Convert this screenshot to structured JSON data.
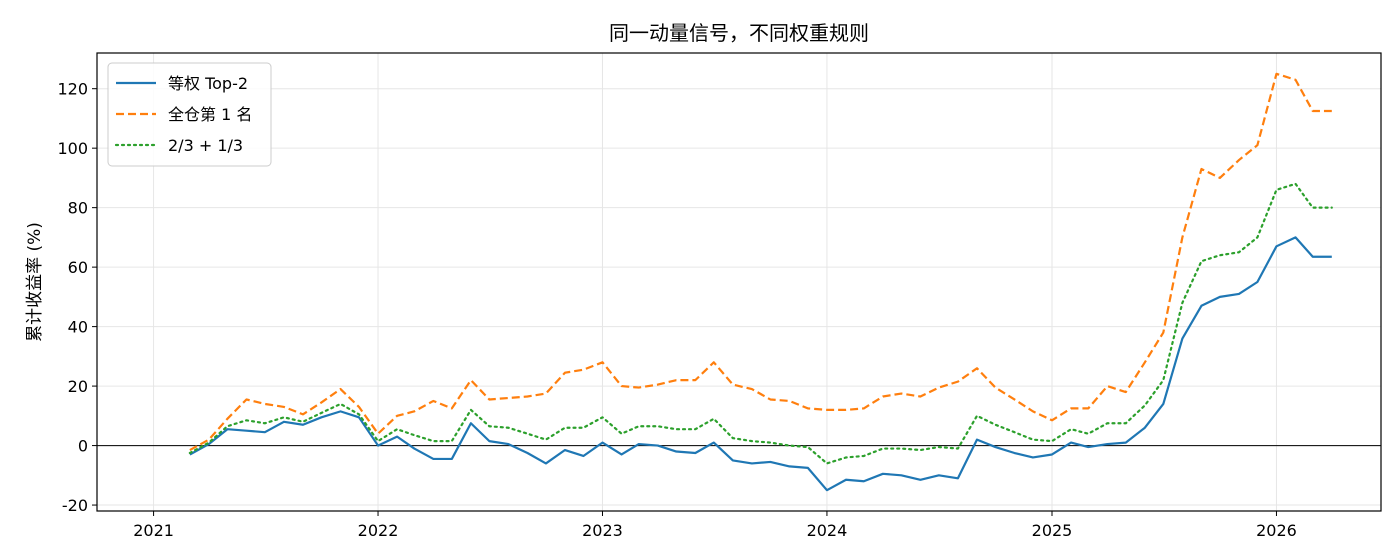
{
  "chart_data": {
    "type": "line",
    "title": "同一动量信号，不同权重规则",
    "xlabel": "",
    "ylabel": "累计收益率 (%)",
    "xlim": [
      "2020-10-01",
      "2026-06-20"
    ],
    "ylim": [
      -22,
      132
    ],
    "x_ticks": [
      "2021-01-01",
      "2022-01-01",
      "2023-01-01",
      "2024-01-01",
      "2025-01-01",
      "2026-01-01"
    ],
    "x_tick_labels": [
      "2021",
      "2022",
      "2023",
      "2024",
      "2025",
      "2026"
    ],
    "y_ticks": [
      -20,
      0,
      20,
      40,
      60,
      80,
      100,
      120
    ],
    "y_tick_labels": [
      "-20",
      "0",
      "20",
      "40",
      "60",
      "80",
      "100",
      "120"
    ],
    "grid": true,
    "zero_line": true,
    "legend_position": "top-left",
    "x": [
      "2021-03-01",
      "2021-04-01",
      "2021-05-01",
      "2021-06-01",
      "2021-07-01",
      "2021-08-01",
      "2021-09-01",
      "2021-10-01",
      "2021-11-01",
      "2021-12-01",
      "2022-01-01",
      "2022-02-01",
      "2022-03-01",
      "2022-04-01",
      "2022-05-01",
      "2022-06-01",
      "2022-07-01",
      "2022-08-01",
      "2022-09-01",
      "2022-10-01",
      "2022-11-01",
      "2022-12-01",
      "2023-01-01",
      "2023-02-01",
      "2023-03-01",
      "2023-04-01",
      "2023-05-01",
      "2023-06-01",
      "2023-07-01",
      "2023-08-01",
      "2023-09-01",
      "2023-10-01",
      "2023-11-01",
      "2023-12-01",
      "2024-01-01",
      "2024-02-01",
      "2024-03-01",
      "2024-04-01",
      "2024-05-01",
      "2024-06-01",
      "2024-07-01",
      "2024-08-01",
      "2024-09-01",
      "2024-10-01",
      "2024-11-01",
      "2024-12-01",
      "2025-01-01",
      "2025-02-01",
      "2025-03-01",
      "2025-04-01",
      "2025-05-01",
      "2025-06-01",
      "2025-07-01",
      "2025-08-01",
      "2025-09-01",
      "2025-10-01",
      "2025-11-01",
      "2025-12-01",
      "2026-01-01",
      "2026-02-01",
      "2026-03-01",
      "2026-04-01"
    ],
    "series": [
      {
        "name": "等权 Top-2",
        "color": "#1f77b4",
        "style": "solid",
        "values": [
          -3,
          0.5,
          5.5,
          5,
          4.5,
          8,
          7,
          9.5,
          11.5,
          9.5,
          0,
          3,
          -1,
          -4.5,
          -4.5,
          7.5,
          1.5,
          0.5,
          -2.5,
          -6,
          -1.5,
          -3.5,
          1,
          -3,
          0.5,
          0,
          -2,
          -2.5,
          1,
          -5,
          -6,
          -5.5,
          -7,
          -7.5,
          -15,
          -11.5,
          -12,
          -9.5,
          -10,
          -11.5,
          -10,
          -11,
          2,
          -0.5,
          -2.5,
          -4,
          -3,
          1,
          -0.5,
          0.5,
          1,
          6,
          14,
          36,
          47,
          50,
          51,
          55,
          67,
          70,
          63.5,
          63.5
        ]
      },
      {
        "name": "全仓第 1 名",
        "color": "#ff7f0e",
        "style": "dashed",
        "values": [
          -1.5,
          2,
          9,
          15.5,
          14,
          13,
          10.5,
          14.5,
          19,
          13,
          4,
          10,
          11.5,
          15,
          12.5,
          22,
          15.5,
          16,
          16.5,
          17.5,
          24.5,
          25.5,
          28,
          20,
          19.5,
          20.5,
          22,
          22,
          28,
          20.5,
          19,
          15.5,
          15,
          12.5,
          12,
          12,
          12.5,
          16.5,
          17.5,
          16.5,
          19.5,
          21.5,
          26,
          19.5,
          15.5,
          11.5,
          8.5,
          12.5,
          12.5,
          20,
          18,
          28,
          38,
          70,
          93,
          90,
          96,
          101,
          125,
          123,
          112.5,
          112.5
        ]
      },
      {
        "name": "2/3 + 1/3",
        "color": "#2ca02c",
        "style": "dotted",
        "values": [
          -2.5,
          1,
          6.5,
          8.5,
          7.5,
          9.5,
          8,
          11,
          14,
          10.5,
          1.5,
          5.5,
          3.5,
          1.5,
          1.5,
          12,
          6.5,
          6,
          4,
          2,
          6,
          6,
          9.5,
          4,
          6.5,
          6.5,
          5.5,
          5.5,
          9,
          2.5,
          1.5,
          1,
          0,
          -0.5,
          -6,
          -4,
          -3.5,
          -1,
          -1,
          -1.5,
          -0.5,
          -1,
          10,
          7,
          4.5,
          2,
          1.5,
          5.5,
          4,
          7.5,
          7.5,
          13.5,
          22,
          48,
          62,
          64,
          65,
          70,
          86,
          88,
          80,
          80
        ]
      }
    ]
  }
}
